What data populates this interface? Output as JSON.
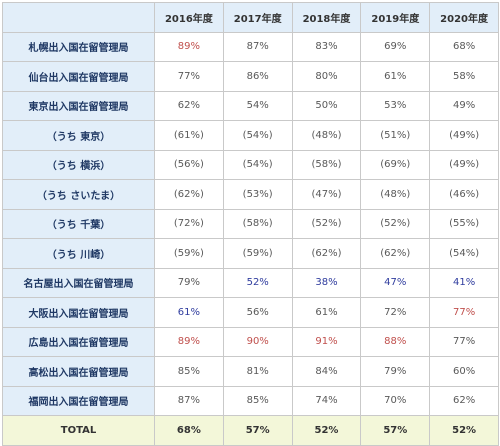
{
  "table": {
    "headers": [
      "2016年度",
      "2017年度",
      "2018年度",
      "2019年度",
      "2020年度"
    ],
    "rows": [
      {
        "label": "札幌出入国在留管理局",
        "values": [
          "89%",
          "87%",
          "83%",
          "69%",
          "68%"
        ],
        "colors": [
          "red",
          "",
          "",
          "",
          ""
        ]
      },
      {
        "label": "仙台出入国在留管理局",
        "values": [
          "77%",
          "86%",
          "80%",
          "61%",
          "58%"
        ],
        "colors": [
          "",
          "",
          "",
          "",
          ""
        ]
      },
      {
        "label": "東京出入国在留管理局",
        "values": [
          "62%",
          "54%",
          "50%",
          "53%",
          "49%"
        ],
        "colors": [
          "",
          "",
          "",
          "",
          ""
        ]
      },
      {
        "label": "（うち 東京）",
        "values": [
          "(61%)",
          "(54%)",
          "(48%)",
          "(51%)",
          "(49%)"
        ],
        "colors": [
          "",
          "",
          "",
          "",
          ""
        ]
      },
      {
        "label": "（うち 横浜）",
        "values": [
          "(56%)",
          "(54%)",
          "(58%)",
          "(69%)",
          "(49%)"
        ],
        "colors": [
          "",
          "",
          "",
          "",
          ""
        ]
      },
      {
        "label": "（うち さいたま）",
        "values": [
          "(62%)",
          "(53%)",
          "(47%)",
          "(48%)",
          "(46%)"
        ],
        "colors": [
          "",
          "",
          "",
          "",
          ""
        ]
      },
      {
        "label": "（うち 千葉）",
        "values": [
          "(72%)",
          "(58%)",
          "(52%)",
          "(52%)",
          "(55%)"
        ],
        "colors": [
          "",
          "",
          "",
          "",
          ""
        ]
      },
      {
        "label": "（うち 川崎）",
        "values": [
          "(59%)",
          "(59%)",
          "(62%)",
          "(62%)",
          "(54%)"
        ],
        "colors": [
          "",
          "",
          "",
          "",
          ""
        ]
      },
      {
        "label": "名古屋出入国在留管理局",
        "values": [
          "79%",
          "52%",
          "38%",
          "47%",
          "41%"
        ],
        "colors": [
          "",
          "blue",
          "blue",
          "blue",
          "blue"
        ]
      },
      {
        "label": "大阪出入国在留管理局",
        "values": [
          "61%",
          "56%",
          "61%",
          "72%",
          "77%"
        ],
        "colors": [
          "blue",
          "",
          "",
          "",
          "red"
        ]
      },
      {
        "label": "広島出入国在留管理局",
        "values": [
          "89%",
          "90%",
          "91%",
          "88%",
          "77%"
        ],
        "colors": [
          "red",
          "red",
          "red",
          "red",
          ""
        ]
      },
      {
        "label": "高松出入国在留管理局",
        "values": [
          "85%",
          "81%",
          "84%",
          "79%",
          "60%"
        ],
        "colors": [
          "",
          "",
          "",
          "",
          ""
        ]
      },
      {
        "label": "福岡出入国在留管理局",
        "values": [
          "87%",
          "85%",
          "74%",
          "70%",
          "62%"
        ],
        "colors": [
          "",
          "",
          "",
          "",
          ""
        ]
      }
    ],
    "total": {
      "label": "TOTAL",
      "values": [
        "68%",
        "57%",
        "52%",
        "57%",
        "52%"
      ]
    }
  }
}
